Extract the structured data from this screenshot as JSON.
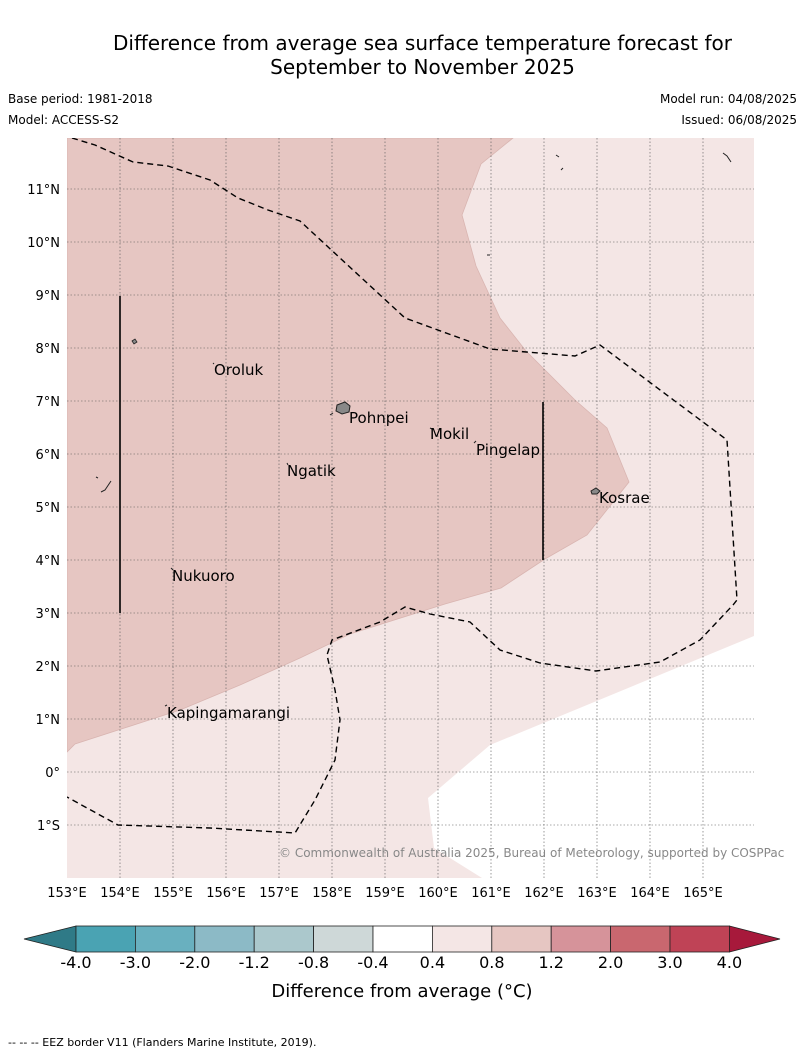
{
  "title": {
    "line1": "Difference from average sea surface temperature forecast for",
    "line2": "September to November 2025"
  },
  "meta": {
    "base_period": "Base period: 1981-2018",
    "model": "Model: ACCESS-S2",
    "model_run": "Model run: 04/08/2025",
    "issued": "Issued: 06/08/2025"
  },
  "map": {
    "lon_range": [
      153,
      166
    ],
    "lat_range": [
      -2,
      12
    ],
    "lon_ticks": [
      "153°E",
      "154°E",
      "155°E",
      "156°E",
      "157°E",
      "158°E",
      "159°E",
      "160°E",
      "161°E",
      "162°E",
      "163°E",
      "164°E",
      "165°E"
    ],
    "lat_ticks": [
      "11°N",
      "10°N",
      "9°N",
      "8°N",
      "7°N",
      "6°N",
      "5°N",
      "4°N",
      "3°N",
      "2°N",
      "1°N",
      "0°",
      "1°S"
    ],
    "gridlines": true,
    "fill_colors": {
      "band_0_4_0_8": "#f4e6e5",
      "band_0_8_1_2": "#e6c6c2"
    },
    "places": [
      {
        "name": "Oroluk"
      },
      {
        "name": "Pohnpei"
      },
      {
        "name": "Mokil"
      },
      {
        "name": "Pingelap"
      },
      {
        "name": "Ngatik"
      },
      {
        "name": "Kosrae"
      },
      {
        "name": "Nukuoro"
      },
      {
        "name": "Kapingamarangi"
      }
    ],
    "copyright": "© Commonwealth of Australia 2025, Bureau of Meteorology, supported by COSPPac"
  },
  "colorbar": {
    "label": "Difference from average (°C)",
    "ticks": [
      "-4.0",
      "-3.0",
      "-2.0",
      "-1.2",
      "-0.8",
      "-0.4",
      "0.4",
      "0.8",
      "1.2",
      "2.0",
      "3.0",
      "4.0"
    ],
    "colors": [
      "#2f7a87",
      "#4aa3b3",
      "#69b0bf",
      "#8cbac6",
      "#abc8cc",
      "#ced8d8",
      "#ffffff",
      "#f4e6e5",
      "#e6c6c2",
      "#d6939a",
      "#c9676f",
      "#bf4356",
      "#a7193b"
    ]
  },
  "footer": "-- -- -- EEZ border V11 (Flanders Marine Institute, 2019)."
}
